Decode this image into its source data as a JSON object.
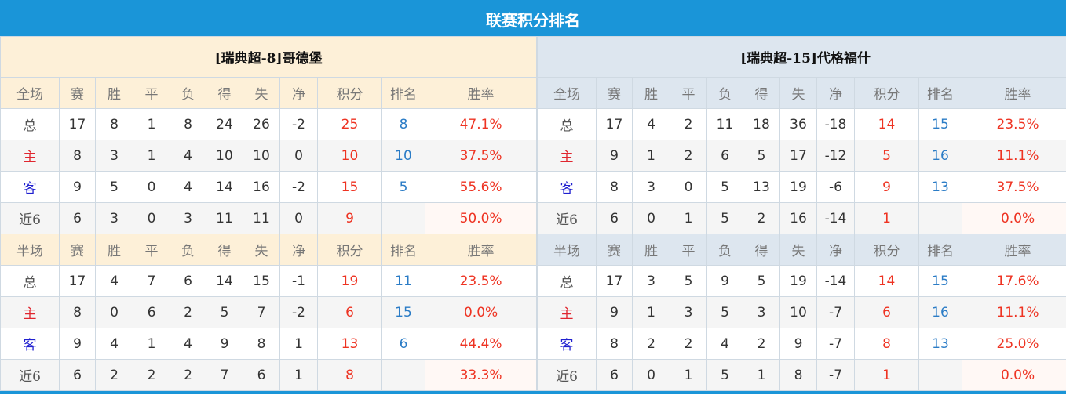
{
  "title": "联赛积分排名",
  "colors": {
    "title_bar": "#1a95d8",
    "home_header": "#fdf0d8",
    "away_header": "#dde6ef",
    "points": "#ee3322",
    "rank": "#2b7cc6"
  },
  "teams": [
    {
      "name": "[瑞典超-8]哥德堡",
      "full": {
        "header": [
          "全场",
          "赛",
          "胜",
          "平",
          "负",
          "得",
          "失",
          "净",
          "积分",
          "排名",
          "胜率"
        ],
        "rows": [
          [
            "总",
            "17",
            "8",
            "1",
            "8",
            "24",
            "26",
            "-2",
            "25",
            "8",
            "47.1%"
          ],
          [
            "主",
            "8",
            "3",
            "1",
            "4",
            "10",
            "10",
            "0",
            "10",
            "10",
            "37.5%"
          ],
          [
            "客",
            "9",
            "5",
            "0",
            "4",
            "14",
            "16",
            "-2",
            "15",
            "5",
            "55.6%"
          ],
          [
            "近6",
            "6",
            "3",
            "0",
            "3",
            "11",
            "11",
            "0",
            "9",
            "",
            "50.0%"
          ]
        ]
      },
      "half": {
        "header": [
          "半场",
          "赛",
          "胜",
          "平",
          "负",
          "得",
          "失",
          "净",
          "积分",
          "排名",
          "胜率"
        ],
        "rows": [
          [
            "总",
            "17",
            "4",
            "7",
            "6",
            "14",
            "15",
            "-1",
            "19",
            "11",
            "23.5%"
          ],
          [
            "主",
            "8",
            "0",
            "6",
            "2",
            "5",
            "7",
            "-2",
            "6",
            "15",
            "0.0%"
          ],
          [
            "客",
            "9",
            "4",
            "1",
            "4",
            "9",
            "8",
            "1",
            "13",
            "6",
            "44.4%"
          ],
          [
            "近6",
            "6",
            "2",
            "2",
            "2",
            "7",
            "6",
            "1",
            "8",
            "",
            "33.3%"
          ]
        ]
      }
    },
    {
      "name": "[瑞典超-15]代格福什",
      "full": {
        "header": [
          "全场",
          "赛",
          "胜",
          "平",
          "负",
          "得",
          "失",
          "净",
          "积分",
          "排名",
          "胜率"
        ],
        "rows": [
          [
            "总",
            "17",
            "4",
            "2",
            "11",
            "18",
            "36",
            "-18",
            "14",
            "15",
            "23.5%"
          ],
          [
            "主",
            "9",
            "1",
            "2",
            "6",
            "5",
            "17",
            "-12",
            "5",
            "16",
            "11.1%"
          ],
          [
            "客",
            "8",
            "3",
            "0",
            "5",
            "13",
            "19",
            "-6",
            "9",
            "13",
            "37.5%"
          ],
          [
            "近6",
            "6",
            "0",
            "1",
            "5",
            "2",
            "16",
            "-14",
            "1",
            "",
            "0.0%"
          ]
        ]
      },
      "half": {
        "header": [
          "半场",
          "赛",
          "胜",
          "平",
          "负",
          "得",
          "失",
          "净",
          "积分",
          "排名",
          "胜率"
        ],
        "rows": [
          [
            "总",
            "17",
            "3",
            "5",
            "9",
            "5",
            "19",
            "-14",
            "14",
            "15",
            "17.6%"
          ],
          [
            "主",
            "9",
            "1",
            "3",
            "5",
            "3",
            "10",
            "-7",
            "6",
            "16",
            "11.1%"
          ],
          [
            "客",
            "8",
            "2",
            "2",
            "4",
            "2",
            "9",
            "-7",
            "8",
            "13",
            "25.0%"
          ],
          [
            "近6",
            "6",
            "0",
            "1",
            "5",
            "1",
            "8",
            "-7",
            "1",
            "",
            "0.0%"
          ]
        ]
      }
    }
  ]
}
